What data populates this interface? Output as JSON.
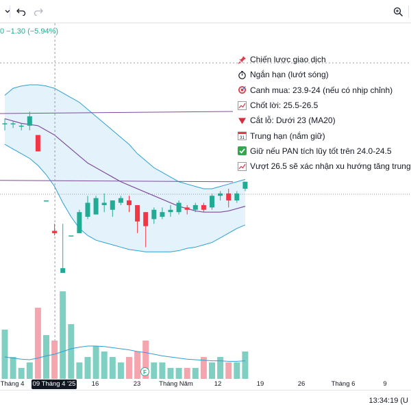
{
  "toolbar": {
    "undo_icon": "undo-icon",
    "redo_icon": "redo-icon",
    "zoom_icon": "zoom-search-icon",
    "settings_icon": "gear-icon"
  },
  "header": {
    "price_change": "0 −1.30 (−5.94%)"
  },
  "legend": {
    "items": [
      {
        "icon": "pushpin-icon",
        "text": "Chiến lược giao dịch"
      },
      {
        "icon": "stopwatch-icon",
        "text": "Ngắn hạn (lướt sóng)"
      },
      {
        "icon": "target-icon",
        "text": "Canh mua: 23.9-24 (nếu có nhịp chỉnh)"
      },
      {
        "icon": "chart-up-icon",
        "text": "Chốt lời: 25.5-26.5"
      },
      {
        "icon": "red-triangle-down-icon",
        "text": "Cắt lỗ: Dưới 23 (MA20)"
      },
      {
        "icon": "calendar-icon",
        "text": "Trung hạn (nắm giữ)"
      },
      {
        "icon": "check-box-icon",
        "text": "Giữ nếu PAN tích lũy tốt trên 24.0-24.5"
      },
      {
        "icon": "chart-up-icon",
        "text": "Vượt 26.5 sẽ xác nhận xu hướng tăng trung hạn"
      }
    ]
  },
  "time_axis": {
    "ticks": [
      "Tháng 4",
      "09 Tháng 4 '25",
      "16",
      "23",
      "Tháng Năm",
      "12",
      "19",
      "26",
      "Tháng 6",
      "9"
    ],
    "highlighted": "09 Tháng 4 '25"
  },
  "events": {
    "financial_marker": "F"
  },
  "status_bar": {
    "clock": "13:34:19 (U"
  },
  "colors": {
    "up": "#22ab94",
    "down": "#f23645",
    "up_volume": "#7fd0c2",
    "down_volume": "#f5a5ad",
    "bollinger_fill": "#e3f2fb",
    "bollinger_line": "#2a9fd6",
    "ma_line": "#7e4a9e"
  },
  "chart_data": {
    "type": "candlestick",
    "series": [
      {
        "name": "",
        "candles": [
          {
            "o": 24.3,
            "h": 24.5,
            "l": 24.0,
            "c": 24.3
          },
          {
            "o": 24.3,
            "h": 24.4,
            "l": 24.1,
            "c": 24.3
          },
          {
            "o": 24.2,
            "h": 24.3,
            "l": 24.0,
            "c": 24.2
          },
          {
            "o": 24.2,
            "h": 24.8,
            "l": 24.0,
            "c": 24.6
          },
          {
            "o": 23.8,
            "h": 23.8,
            "l": 23.1,
            "c": 23.1
          },
          {
            "o": 21.0,
            "h": 21.0,
            "l": 21.0,
            "c": 21.0
          },
          {
            "o": 19.7,
            "h": 20.0,
            "l": 19.5,
            "c": 19.6
          },
          {
            "o": 17.9,
            "h": 20.0,
            "l": 17.9,
            "c": 18.1
          },
          {
            "o": 19.5,
            "h": 19.5,
            "l": 19.5,
            "c": 19.5
          },
          {
            "o": 19.6,
            "h": 20.6,
            "l": 19.6,
            "c": 20.5
          },
          {
            "o": 20.3,
            "h": 21.2,
            "l": 20.2,
            "c": 20.9
          },
          {
            "o": 20.4,
            "h": 21.2,
            "l": 20.4,
            "c": 21.1
          },
          {
            "o": 20.8,
            "h": 21.3,
            "l": 20.5,
            "c": 20.9
          },
          {
            "o": 20.6,
            "h": 21.0,
            "l": 20.3,
            "c": 21.0
          },
          {
            "o": 20.9,
            "h": 21.2,
            "l": 20.8,
            "c": 21.1
          },
          {
            "o": 21.0,
            "h": 21.2,
            "l": 20.5,
            "c": 20.8
          },
          {
            "o": 20.8,
            "h": 20.8,
            "l": 19.6,
            "c": 20.1
          },
          {
            "o": 20.5,
            "h": 20.5,
            "l": 19.0,
            "c": 19.9
          },
          {
            "o": 20.2,
            "h": 20.7,
            "l": 20.0,
            "c": 20.6
          },
          {
            "o": 20.3,
            "h": 20.7,
            "l": 20.2,
            "c": 20.5
          },
          {
            "o": 20.5,
            "h": 20.8,
            "l": 20.3,
            "c": 20.6
          },
          {
            "o": 20.5,
            "h": 21.0,
            "l": 20.4,
            "c": 20.9
          },
          {
            "o": 20.7,
            "h": 20.8,
            "l": 20.4,
            "c": 20.6
          },
          {
            "o": 20.6,
            "h": 20.9,
            "l": 20.5,
            "c": 20.8
          },
          {
            "o": 20.8,
            "h": 20.9,
            "l": 20.5,
            "c": 20.6
          },
          {
            "o": 20.7,
            "h": 21.3,
            "l": 20.6,
            "c": 21.2
          },
          {
            "o": 21.2,
            "h": 21.4,
            "l": 21.0,
            "c": 21.3
          },
          {
            "o": 21.3,
            "h": 21.5,
            "l": 20.7,
            "c": 21.0
          },
          {
            "o": 21.0,
            "h": 21.4,
            "l": 20.9,
            "c": 21.3
          },
          {
            "o": 21.5,
            "h": 21.8,
            "l": 21.4,
            "c": 21.8
          }
        ]
      }
    ],
    "volume": [
      0.9,
      0.4,
      0.2,
      0.3,
      1.3,
      0.8,
      0.7,
      1.6,
      1.0,
      0.3,
      0.4,
      0.6,
      0.5,
      0.4,
      0.3,
      0.4,
      0.5,
      0.7,
      0.3,
      0.3,
      0.2,
      0.2,
      0.2,
      0.2,
      0.4,
      0.3,
      0.4,
      0.3,
      0.3,
      0.5
    ],
    "ma20": [
      24.5,
      24.4,
      24.3,
      24.25,
      24.2,
      24.0,
      23.8,
      23.5,
      23.2,
      22.9,
      22.6,
      22.4,
      22.2,
      22.0,
      21.8,
      21.65,
      21.5,
      21.35,
      21.2,
      21.05,
      20.9,
      20.75,
      20.65,
      20.55,
      20.5,
      20.5,
      20.5,
      20.55,
      20.65,
      20.75
    ],
    "bb_upper": [
      25.5,
      25.8,
      25.9,
      25.95,
      25.95,
      25.9,
      25.8,
      25.6,
      25.4,
      25.2,
      24.9,
      24.6,
      24.3,
      24.0,
      23.7,
      23.4,
      23.0,
      22.7,
      22.4,
      22.2,
      22.0,
      21.8,
      21.7,
      21.6,
      21.5,
      21.5,
      21.6,
      21.7,
      21.8,
      21.9
    ],
    "bb_lower": [
      23.4,
      23.2,
      23.0,
      22.8,
      22.5,
      22.1,
      21.6,
      20.9,
      20.3,
      19.8,
      19.5,
      19.3,
      19.2,
      19.1,
      19.0,
      18.9,
      18.85,
      18.8,
      18.8,
      18.8,
      18.8,
      18.85,
      18.95,
      19.0,
      19.1,
      19.2,
      19.4,
      19.6,
      19.8,
      19.95
    ],
    "horizontal_line_level": 21.8
  }
}
